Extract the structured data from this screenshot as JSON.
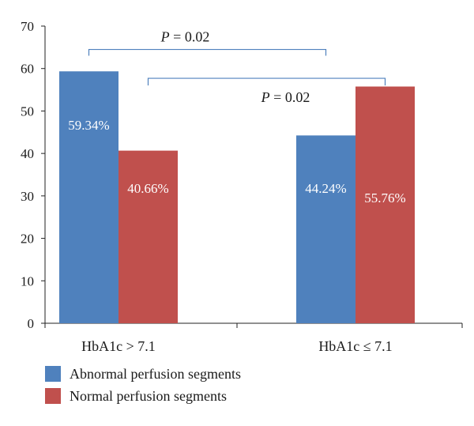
{
  "chart_data": {
    "type": "bar",
    "categories": [
      "HbA1c > 7.1",
      "HbA1c ≤ 7.1"
    ],
    "series": [
      {
        "name": "Abnormal perfusion segments",
        "color": "#4f81bd",
        "values": [
          59.34,
          44.24
        ],
        "labels": [
          "59.34%",
          "44.24%"
        ]
      },
      {
        "name": "Normal perfusion segments",
        "color": "#c0504d",
        "values": [
          40.66,
          55.76
        ],
        "labels": [
          "40.66%",
          "55.76%"
        ]
      }
    ],
    "ylim": [
      0,
      70
    ],
    "yticks": [
      0,
      10,
      20,
      30,
      40,
      50,
      60,
      70
    ],
    "grid": false,
    "legend": "bottom-left",
    "annotations": [
      {
        "text": "P = 0.02",
        "from": {
          "category": 0,
          "series": 0
        },
        "to": {
          "category": 1,
          "series": 0
        },
        "level": 64.5
      },
      {
        "text": "P = 0.02",
        "from": {
          "category": 0,
          "series": 1
        },
        "to": {
          "category": 1,
          "series": 1
        },
        "level": 57.7
      }
    ],
    "bracket_color": "#4f81bd"
  }
}
